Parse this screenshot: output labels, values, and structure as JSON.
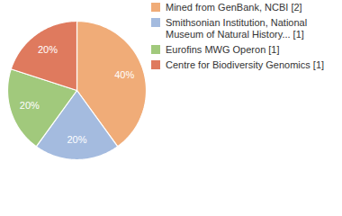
{
  "chart_data": {
    "type": "pie",
    "categories": [
      "Mined from GenBank, NCBI [2]",
      "Smithsonian Institution, National Museum of Natural History... [1]",
      "Eurofins MWG Operon [1]",
      "Centre for Biodiversity Genomics [1]"
    ],
    "values": [
      40,
      20,
      20,
      20
    ],
    "value_labels": [
      "40%",
      "20%",
      "20%",
      "20%"
    ],
    "colors": [
      "#f0ac78",
      "#a4bbdf",
      "#a1c97c",
      "#df7a5e"
    ],
    "data_labels": true,
    "legend": "right"
  }
}
